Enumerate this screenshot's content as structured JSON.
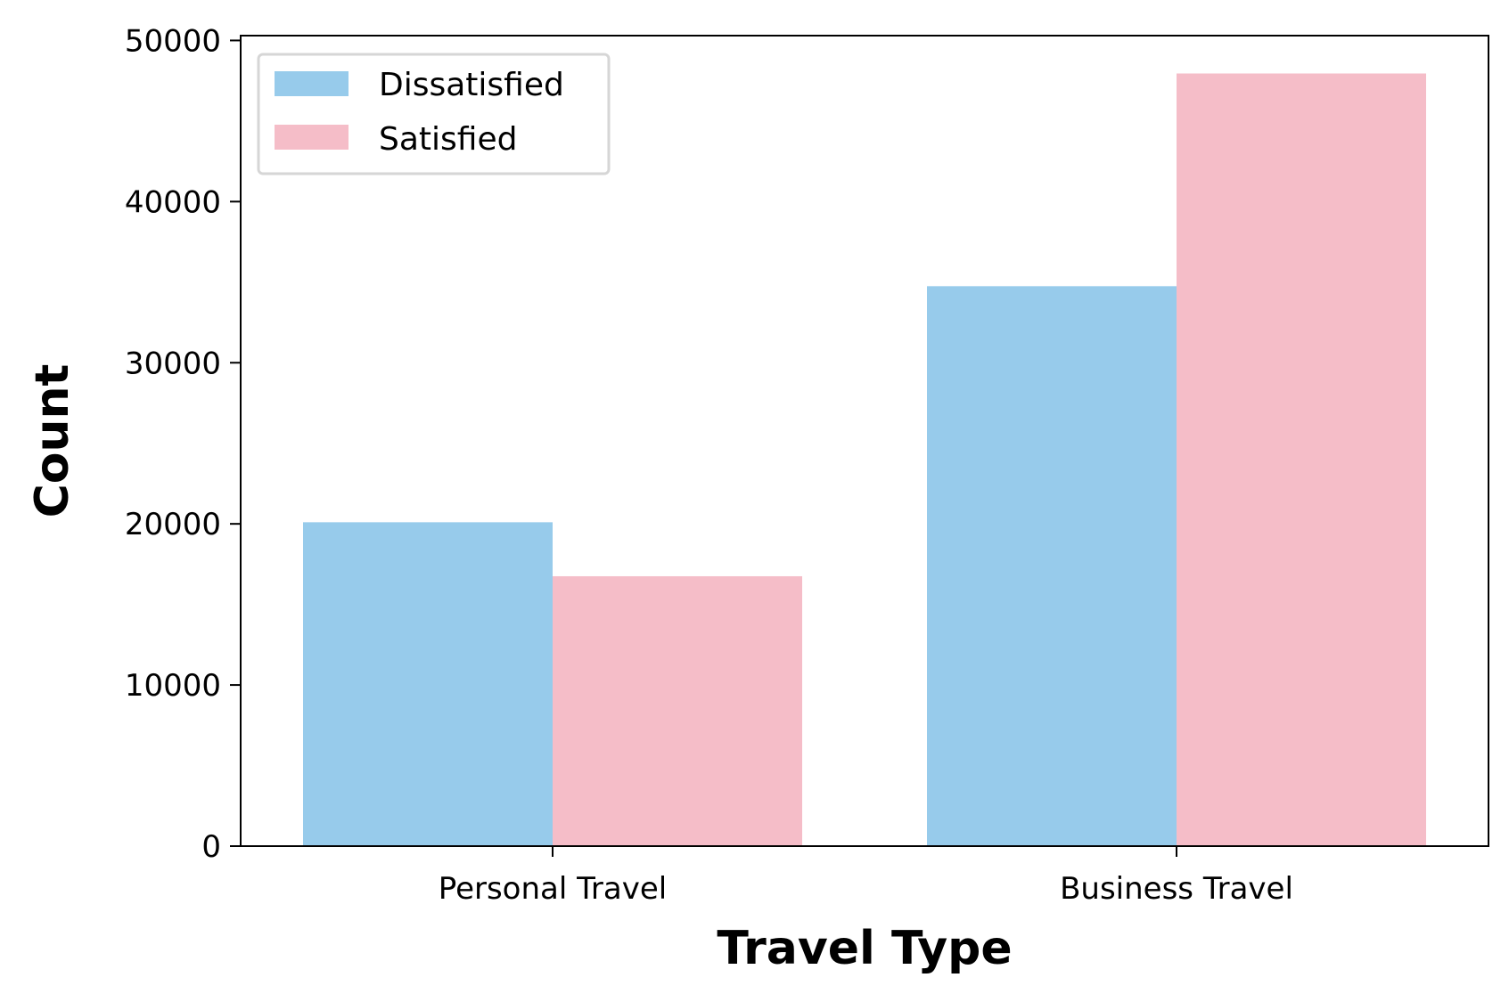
{
  "chart_data": {
    "type": "bar",
    "title": "",
    "xlabel": "Travel Type",
    "ylabel": "Count",
    "categories": [
      "Personal Travel",
      "Business Travel"
    ],
    "series": [
      {
        "name": "Dissatisfied",
        "values": [
          20100,
          34750
        ],
        "color": "#97CBEB"
      },
      {
        "name": "Satisfied",
        "values": [
          16750,
          47950
        ],
        "color": "#F5BDC8"
      }
    ],
    "ylim": [
      0,
      50300
    ],
    "yticks": [
      0,
      10000,
      20000,
      30000,
      40000,
      50000
    ],
    "ytick_labels": [
      "0",
      "10000",
      "20000",
      "30000",
      "40000",
      "50000"
    ],
    "grid": false,
    "legend_position": "upper left"
  }
}
